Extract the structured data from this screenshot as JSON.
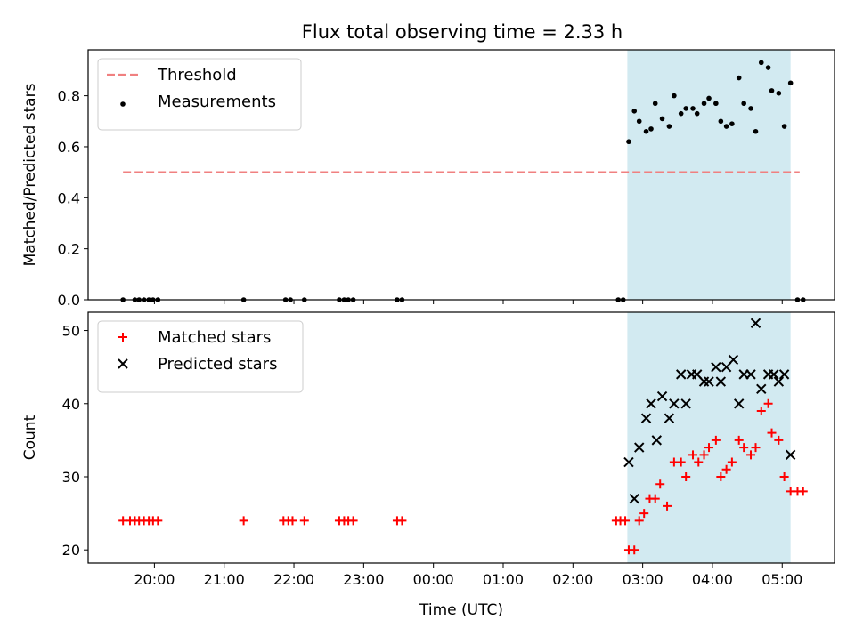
{
  "figure": {
    "title": "Flux total observing time = 2.33 h"
  },
  "chart_data": [
    {
      "type": "scatter",
      "title": "Flux total observing time = 2.33 h",
      "xlabel": "",
      "ylabel": "Matched/Predicted stars",
      "ylim": [
        0,
        0.98
      ],
      "yticks": [
        0.0,
        0.2,
        0.4,
        0.6,
        0.8
      ],
      "yticklabels": [
        "0.0",
        "0.2",
        "0.4",
        "0.6",
        "0.8"
      ],
      "xlim_hours": [
        -4.95,
        5.75
      ],
      "xticks_hours": [
        -4,
        -3,
        -2,
        -1,
        0,
        1,
        2,
        3,
        4,
        5
      ],
      "grid": false,
      "legend_position": "top-left",
      "observing_window_hours": [
        2.78,
        5.12
      ],
      "observing_window_color": "#add8e6",
      "series": [
        {
          "name": "Threshold",
          "kind": "dashed-line",
          "color": "#f08080",
          "x": [
            -4.45,
            5.25
          ],
          "y": [
            0.5,
            0.5
          ]
        },
        {
          "name": "Measurements",
          "kind": "dot",
          "color": "#000000",
          "points": [
            [
              -4.45,
              0
            ],
            [
              -4.28,
              0
            ],
            [
              -4.22,
              0
            ],
            [
              -4.15,
              0
            ],
            [
              -4.08,
              0
            ],
            [
              -4.02,
              0
            ],
            [
              -3.95,
              0
            ],
            [
              -2.72,
              0
            ],
            [
              -2.12,
              0
            ],
            [
              -2.05,
              0
            ],
            [
              -1.85,
              0
            ],
            [
              -1.35,
              0
            ],
            [
              -1.28,
              0
            ],
            [
              -1.22,
              0
            ],
            [
              -1.15,
              0
            ],
            [
              -0.52,
              0
            ],
            [
              -0.45,
              0
            ],
            [
              2.65,
              0
            ],
            [
              2.72,
              0
            ],
            [
              2.8,
              0.62
            ],
            [
              2.88,
              0.74
            ],
            [
              2.95,
              0.7
            ],
            [
              3.05,
              0.66
            ],
            [
              3.12,
              0.67
            ],
            [
              3.18,
              0.77
            ],
            [
              3.28,
              0.71
            ],
            [
              3.38,
              0.68
            ],
            [
              3.45,
              0.8
            ],
            [
              3.55,
              0.73
            ],
            [
              3.62,
              0.75
            ],
            [
              3.72,
              0.75
            ],
            [
              3.78,
              0.73
            ],
            [
              3.88,
              0.77
            ],
            [
              3.95,
              0.79
            ],
            [
              4.05,
              0.77
            ],
            [
              4.12,
              0.7
            ],
            [
              4.2,
              0.68
            ],
            [
              4.28,
              0.69
            ],
            [
              4.38,
              0.87
            ],
            [
              4.45,
              0.77
            ],
            [
              4.55,
              0.75
            ],
            [
              4.62,
              0.66
            ],
            [
              4.7,
              0.93
            ],
            [
              4.8,
              0.91
            ],
            [
              4.85,
              0.82
            ],
            [
              4.95,
              0.81
            ],
            [
              5.03,
              0.68
            ],
            [
              5.12,
              0.85
            ],
            [
              5.22,
              0
            ],
            [
              5.3,
              0
            ]
          ]
        }
      ],
      "xticklabels": [
        "20:00",
        "21:00",
        "22:00",
        "23:00",
        "00:00",
        "01:00",
        "02:00",
        "03:00",
        "04:00",
        "05:00"
      ]
    },
    {
      "type": "scatter",
      "title": "",
      "xlabel": "Time (UTC)",
      "ylabel": "Count",
      "ylim": [
        18.2,
        52.5
      ],
      "yticks": [
        20,
        30,
        40,
        50
      ],
      "yticklabels": [
        "20",
        "30",
        "40",
        "50"
      ],
      "xlim_hours": [
        -4.95,
        5.75
      ],
      "xticks_hours": [
        -4,
        -3,
        -2,
        -1,
        0,
        1,
        2,
        3,
        4,
        5
      ],
      "xticklabels": [
        "20:00",
        "21:00",
        "22:00",
        "23:00",
        "00:00",
        "01:00",
        "02:00",
        "03:00",
        "04:00",
        "05:00"
      ],
      "grid": false,
      "legend_position": "top-left",
      "observing_window_hours": [
        2.78,
        5.12
      ],
      "observing_window_color": "#add8e6",
      "series": [
        {
          "name": "Matched stars",
          "kind": "plus",
          "color": "#ff0000",
          "points": [
            [
              -4.45,
              24
            ],
            [
              -4.35,
              24
            ],
            [
              -4.28,
              24
            ],
            [
              -4.22,
              24
            ],
            [
              -4.15,
              24
            ],
            [
              -4.08,
              24
            ],
            [
              -4.02,
              24
            ],
            [
              -3.95,
              24
            ],
            [
              -2.72,
              24
            ],
            [
              -2.15,
              24
            ],
            [
              -2.08,
              24
            ],
            [
              -2.02,
              24
            ],
            [
              -1.85,
              24
            ],
            [
              -1.35,
              24
            ],
            [
              -1.28,
              24
            ],
            [
              -1.22,
              24
            ],
            [
              -1.15,
              24
            ],
            [
              -0.52,
              24
            ],
            [
              -0.45,
              24
            ],
            [
              2.62,
              24
            ],
            [
              2.68,
              24
            ],
            [
              2.75,
              24
            ],
            [
              2.8,
              20
            ],
            [
              2.88,
              20
            ],
            [
              2.95,
              24
            ],
            [
              3.02,
              25
            ],
            [
              3.1,
              27
            ],
            [
              3.18,
              27
            ],
            [
              3.25,
              29
            ],
            [
              3.35,
              26
            ],
            [
              3.45,
              32
            ],
            [
              3.55,
              32
            ],
            [
              3.62,
              30
            ],
            [
              3.72,
              33
            ],
            [
              3.8,
              32
            ],
            [
              3.88,
              33
            ],
            [
              3.95,
              34
            ],
            [
              4.05,
              35
            ],
            [
              4.12,
              30
            ],
            [
              4.2,
              31
            ],
            [
              4.28,
              32
            ],
            [
              4.38,
              35
            ],
            [
              4.45,
              34
            ],
            [
              4.55,
              33
            ],
            [
              4.62,
              34
            ],
            [
              4.7,
              39
            ],
            [
              4.8,
              40
            ],
            [
              4.85,
              36
            ],
            [
              4.95,
              35
            ],
            [
              5.03,
              30
            ],
            [
              5.12,
              28
            ],
            [
              5.22,
              28
            ],
            [
              5.3,
              28
            ]
          ]
        },
        {
          "name": "Predicted stars",
          "kind": "x",
          "color": "#000000",
          "points": [
            [
              2.8,
              32
            ],
            [
              2.88,
              27
            ],
            [
              2.95,
              34
            ],
            [
              3.05,
              38
            ],
            [
              3.12,
              40
            ],
            [
              3.2,
              35
            ],
            [
              3.28,
              41
            ],
            [
              3.38,
              38
            ],
            [
              3.45,
              40
            ],
            [
              3.55,
              44
            ],
            [
              3.62,
              40
            ],
            [
              3.7,
              44
            ],
            [
              3.78,
              44
            ],
            [
              3.88,
              43
            ],
            [
              3.95,
              43
            ],
            [
              4.05,
              45
            ],
            [
              4.12,
              43
            ],
            [
              4.2,
              45
            ],
            [
              4.3,
              46
            ],
            [
              4.38,
              40
            ],
            [
              4.45,
              44
            ],
            [
              4.55,
              44
            ],
            [
              4.62,
              51
            ],
            [
              4.7,
              42
            ],
            [
              4.8,
              44
            ],
            [
              4.88,
              44
            ],
            [
              4.95,
              43
            ],
            [
              5.03,
              44
            ],
            [
              5.12,
              33
            ]
          ]
        }
      ]
    }
  ]
}
